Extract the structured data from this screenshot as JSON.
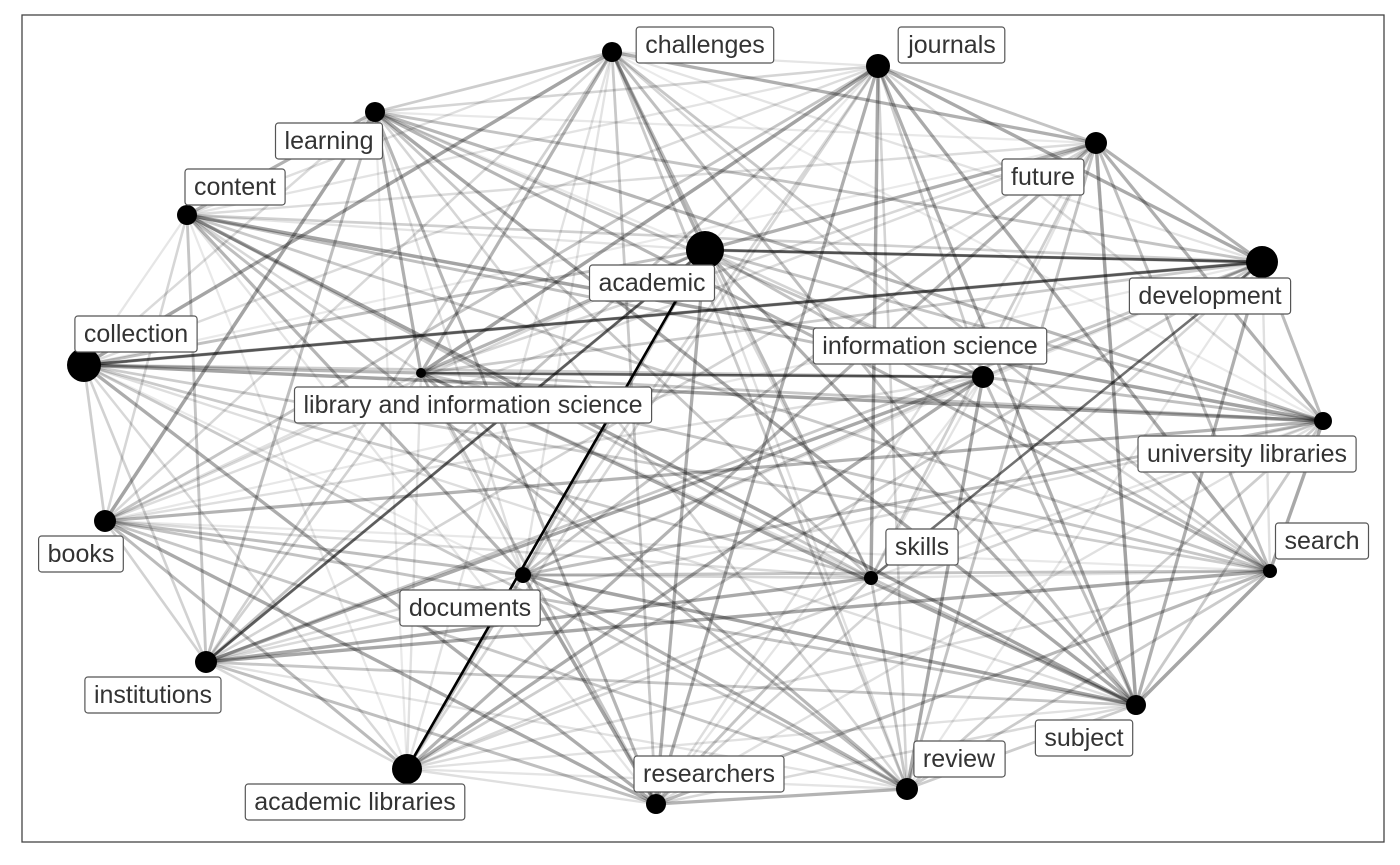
{
  "nodes": [
    {
      "id": "challenges",
      "label": "challenges",
      "size": 10
    },
    {
      "id": "journals",
      "label": "journals",
      "size": 12
    },
    {
      "id": "learning",
      "label": "learning",
      "size": 10
    },
    {
      "id": "future",
      "label": "future",
      "size": 11
    },
    {
      "id": "content",
      "label": "content",
      "size": 10
    },
    {
      "id": "academic",
      "label": "academic",
      "size": 19
    },
    {
      "id": "development",
      "label": "development",
      "size": 16
    },
    {
      "id": "collection",
      "label": "collection",
      "size": 17
    },
    {
      "id": "information-science",
      "label": "information science",
      "size": 11
    },
    {
      "id": "lis",
      "label": "library and information science",
      "size": 5
    },
    {
      "id": "university-libraries",
      "label": "university libraries",
      "size": 9
    },
    {
      "id": "books",
      "label": "books",
      "size": 11
    },
    {
      "id": "skills",
      "label": "skills",
      "size": 7
    },
    {
      "id": "search",
      "label": "search",
      "size": 7
    },
    {
      "id": "documents",
      "label": "documents",
      "size": 8
    },
    {
      "id": "institutions",
      "label": "institutions",
      "size": 11
    },
    {
      "id": "subject",
      "label": "subject",
      "size": 10
    },
    {
      "id": "review",
      "label": "review",
      "size": 11
    },
    {
      "id": "researchers",
      "label": "researchers",
      "size": 10
    },
    {
      "id": "academic-libraries",
      "label": "academic libraries",
      "size": 15
    }
  ],
  "strong_edges": [
    {
      "source": "academic",
      "target": "academic-libraries",
      "weight": 1.0
    },
    {
      "source": "lis",
      "target": "information-science",
      "weight": 0.7
    },
    {
      "source": "academic",
      "target": "development",
      "weight": 0.6
    },
    {
      "source": "collection",
      "target": "development",
      "weight": 0.5
    },
    {
      "source": "academic",
      "target": "institutions",
      "weight": 0.5
    },
    {
      "source": "skills",
      "target": "development",
      "weight": 0.5
    }
  ],
  "colors": {
    "node": "#000000",
    "edge": "#000000",
    "label_border": "#555555",
    "label_text": "#333333"
  }
}
